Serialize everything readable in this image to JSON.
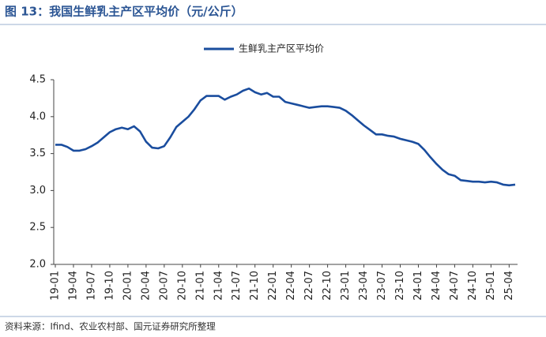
{
  "chart_data": {
    "type": "line",
    "title": "图 13：我国生鲜乳主产区平均价（元/公斤）",
    "note": "资料来源：Ifind、农业农村部、国元证券研究所整理",
    "categories": [
      "19-01",
      null,
      null,
      "19-04",
      null,
      null,
      "19-07",
      null,
      null,
      "19-10",
      null,
      null,
      "20-01",
      null,
      null,
      "20-04",
      null,
      null,
      "20-07",
      null,
      null,
      "20-10",
      null,
      null,
      "21-01",
      null,
      null,
      "21-04",
      null,
      null,
      "21-07",
      null,
      null,
      "21-10",
      null,
      null,
      "22-01",
      null,
      null,
      "22-04",
      null,
      null,
      "22-07",
      null,
      null,
      "22-10",
      null,
      null,
      "23-01",
      null,
      null,
      "23-04",
      null,
      null,
      "23-07",
      null,
      null,
      "23-10",
      null,
      null,
      "24-01",
      null,
      null,
      "24-04",
      null,
      null,
      "24-07",
      null,
      null,
      "24-10",
      null,
      null,
      "25-01",
      null,
      null,
      "25-04",
      null
    ],
    "series": [
      {
        "name": "生鲜乳主产区平均价",
        "color": "#1a4d9e",
        "values": [
          3.62,
          3.62,
          3.59,
          3.54,
          3.54,
          3.56,
          3.6,
          3.65,
          3.72,
          3.79,
          3.83,
          3.85,
          3.83,
          3.87,
          3.8,
          3.66,
          3.58,
          3.57,
          3.6,
          3.72,
          3.86,
          3.93,
          4.0,
          4.1,
          4.22,
          4.28,
          4.28,
          4.28,
          4.23,
          4.27,
          4.3,
          4.35,
          4.38,
          4.33,
          4.3,
          4.32,
          4.27,
          4.27,
          4.2,
          4.18,
          4.16,
          4.14,
          4.12,
          4.13,
          4.14,
          4.14,
          4.13,
          4.12,
          4.08,
          4.02,
          3.95,
          3.88,
          3.82,
          3.76,
          3.76,
          3.74,
          3.73,
          3.7,
          3.68,
          3.66,
          3.63,
          3.55,
          3.45,
          3.36,
          3.28,
          3.22,
          3.2,
          3.14,
          3.13,
          3.12,
          3.12,
          3.11,
          3.12,
          3.11,
          3.08,
          3.07,
          3.08
        ]
      }
    ],
    "ylim": [
      2,
      4.5
    ],
    "yticks": [
      {
        "value": 2,
        "label": "2.0"
      },
      2.5,
      {
        "value": 3,
        "label": "3.0"
      },
      3.5,
      {
        "value": 4,
        "label": "4.0"
      },
      4.5
    ],
    "grid": false,
    "legend": "top"
  }
}
